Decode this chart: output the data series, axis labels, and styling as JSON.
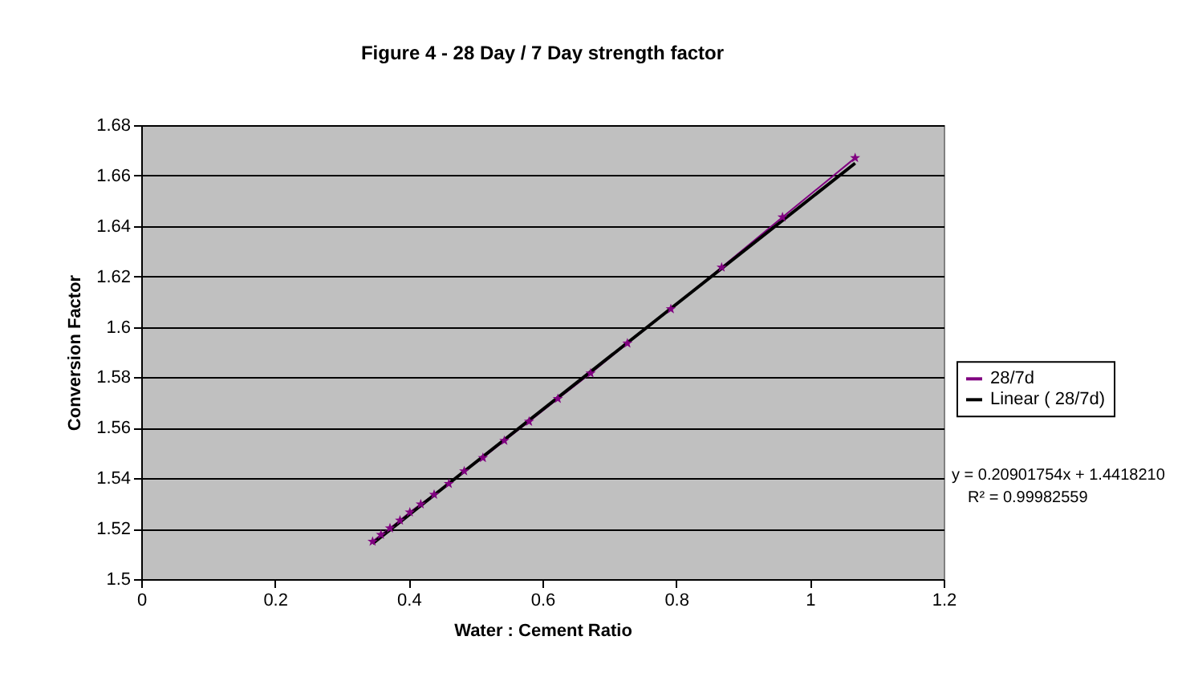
{
  "chart_data": {
    "type": "line",
    "title": "Figure 4 - 28 Day / 7 Day strength factor",
    "xlabel": "Water : Cement Ratio",
    "ylabel": "Conversion Factor",
    "series": [
      {
        "name": "28/7d",
        "color": "#800080",
        "marker": "star",
        "x": [
          0.346,
          0.3585,
          0.372,
          0.387,
          0.4017,
          0.418,
          0.438,
          0.46,
          0.483,
          0.511,
          0.543,
          0.58,
          0.623,
          0.672,
          0.727,
          0.792,
          0.868,
          0.959,
          1.0676
        ],
        "values": [
          1.5149,
          1.5176,
          1.5202,
          1.5233,
          1.5265,
          1.5297,
          1.5335,
          1.5378,
          1.5428,
          1.5481,
          1.5549,
          1.5625,
          1.5715,
          1.5816,
          1.5935,
          1.6071,
          1.6236,
          1.6435,
          1.667
        ]
      },
      {
        "name": "Linear ( 28/7d)",
        "color": "#000000",
        "marker": "none",
        "x": [
          0.346,
          1.0676
        ],
        "values": [
          1.5141,
          1.6649
        ]
      }
    ],
    "xlim": [
      0,
      1.2
    ],
    "xticks": [
      0,
      0.2,
      0.4,
      0.6,
      0.8,
      1,
      1.2
    ],
    "ylim": [
      1.5,
      1.68
    ],
    "yticks": [
      1.5,
      1.52,
      1.54,
      1.56,
      1.58,
      1.6,
      1.62,
      1.64,
      1.66,
      1.68
    ],
    "grid": "y",
    "legend": "right",
    "annotations": [
      "y = 0.20901754x + 1.4418210",
      "R² = 0.99982559"
    ]
  }
}
